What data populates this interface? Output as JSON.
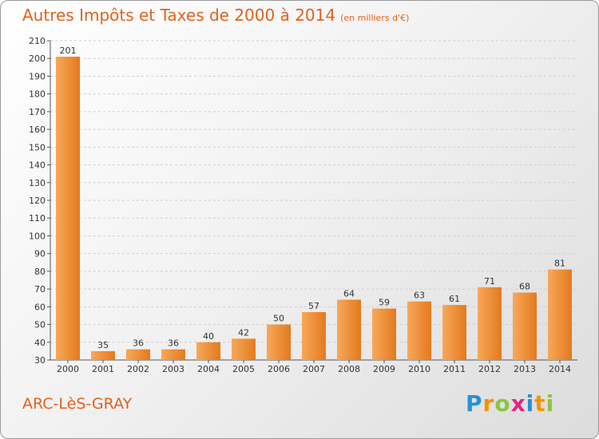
{
  "title": "Autres Impôts et Taxes de 2000 à 2014",
  "subtitle": "(en milliers d'€)",
  "city": "ARC-LèS-GRAY",
  "logo": {
    "letters": [
      "P",
      "r",
      "o",
      "x",
      "i",
      "t",
      "i"
    ],
    "colors": [
      "#2a8fd6",
      "#f39200",
      "#8cc63f",
      "#e5247f",
      "#2a8fd6",
      "#f39200",
      "#8cc63f"
    ]
  },
  "chart_data": {
    "type": "bar",
    "categories": [
      "2000",
      "2001",
      "2002",
      "2003",
      "2004",
      "2005",
      "2006",
      "2007",
      "2008",
      "2009",
      "2010",
      "2011",
      "2012",
      "2013",
      "2014"
    ],
    "values": [
      201,
      35,
      36,
      36,
      40,
      42,
      50,
      57,
      64,
      59,
      63,
      61,
      71,
      68,
      81
    ],
    "ylim": [
      30,
      210
    ],
    "yticks": [
      30,
      40,
      50,
      60,
      70,
      80,
      90,
      100,
      110,
      120,
      130,
      140,
      150,
      160,
      170,
      180,
      190,
      200,
      210
    ],
    "grid": true,
    "bar_color": "#f0923a",
    "bar_color_dark": "#e07818"
  }
}
